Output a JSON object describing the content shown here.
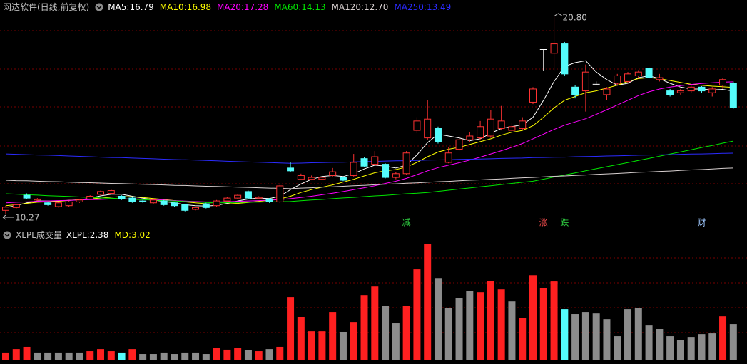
{
  "chart_data": [
    {
      "type": "candlestick",
      "title": "网达软件(日线,前复权)",
      "legend_separator": ": ",
      "up_color": "#ff3232",
      "down_color": "#54fcfc",
      "flat_color": "#ffffff",
      "ylim": [
        9.59,
        20.95
      ],
      "open": [
        10.45,
        10.6,
        11.25,
        11.0,
        10.85,
        10.65,
        10.7,
        10.9,
        11.05,
        11.3,
        11.35,
        11.2,
        11.1,
        10.95,
        10.85,
        10.95,
        10.85,
        10.75,
        10.5,
        10.8,
        10.7,
        10.95,
        11.1,
        11.45,
        11.1,
        11.05,
        10.9,
        12.7,
        12.1,
        12.1,
        12.1,
        12.3,
        12.2,
        12.3,
        13.2,
        12.9,
        12.9,
        12.2,
        12.4,
        14.7,
        14.3,
        14.8,
        13.0,
        13.7,
        14.2,
        14.3,
        14.4,
        14.8,
        14.7,
        14.8,
        16.2,
        19.0,
        18.8,
        19.3,
        17.0,
        16.8,
        17.15,
        16.6,
        17.2,
        17.3,
        17.6,
        18.0,
        17.4,
        16.8,
        16.7,
        16.8,
        17.0,
        16.7,
        17.1,
        17.2
      ],
      "high": [
        10.7,
        10.8,
        11.35,
        11.1,
        10.9,
        10.9,
        10.95,
        11.05,
        11.25,
        11.5,
        11.55,
        11.25,
        11.15,
        11.0,
        11.05,
        11.0,
        10.9,
        10.8,
        10.65,
        10.85,
        11.0,
        11.15,
        11.3,
        11.5,
        11.2,
        11.1,
        11.8,
        13.0,
        12.4,
        12.3,
        12.25,
        12.7,
        12.25,
        13.45,
        13.3,
        13.6,
        12.95,
        12.5,
        13.6,
        15.4,
        16.3,
        14.9,
        13.8,
        14.4,
        14.6,
        15.2,
        15.8,
        16.0,
        15.1,
        15.4,
        17.0,
        19.0,
        20.8,
        19.4,
        17.1,
        18.2,
        17.3,
        17.0,
        17.7,
        17.8,
        17.9,
        18.05,
        17.7,
        16.9,
        16.9,
        17.1,
        17.05,
        17.0,
        17.5,
        17.3
      ],
      "low": [
        10.27,
        10.55,
        11.05,
        10.95,
        10.7,
        10.6,
        10.65,
        10.85,
        11.0,
        11.25,
        11.3,
        11.0,
        10.85,
        10.85,
        10.8,
        10.7,
        10.65,
        10.4,
        10.45,
        10.55,
        10.65,
        10.9,
        11.05,
        11.05,
        11.05,
        10.85,
        10.85,
        12.5,
        12.05,
        12.05,
        12.05,
        12.25,
        12.0,
        12.25,
        12.75,
        12.85,
        12.15,
        12.1,
        12.35,
        14.55,
        14.2,
        14.0,
        12.95,
        13.6,
        14.1,
        14.2,
        14.3,
        14.7,
        14.6,
        14.7,
        16.1,
        17.85,
        17.9,
        17.6,
        16.4,
        15.7,
        17.1,
        16.3,
        17.1,
        17.2,
        17.5,
        17.45,
        17.3,
        16.5,
        16.6,
        16.7,
        16.7,
        16.5,
        16.9,
        15.85
      ],
      "close": [
        10.62,
        10.75,
        11.1,
        11.05,
        10.75,
        10.85,
        10.9,
        11.0,
        11.2,
        11.45,
        11.5,
        11.05,
        10.9,
        10.9,
        11.0,
        10.75,
        10.7,
        10.45,
        10.6,
        10.6,
        10.95,
        11.1,
        11.25,
        11.1,
        11.15,
        10.9,
        11.75,
        12.55,
        12.3,
        12.2,
        12.2,
        12.5,
        12.05,
        13.0,
        12.8,
        13.3,
        12.2,
        12.4,
        13.5,
        15.2,
        15.3,
        14.1,
        13.5,
        14.2,
        14.4,
        14.9,
        15.3,
        15.2,
        14.9,
        15.2,
        16.9,
        19.0,
        19.3,
        17.7,
        16.6,
        17.8,
        17.15,
        16.9,
        17.6,
        17.7,
        17.8,
        17.5,
        17.5,
        16.6,
        16.8,
        17.0,
        16.8,
        16.9,
        17.4,
        15.9
      ],
      "series": [
        {
          "name": "MA5",
          "color": "#ffffff",
          "legend_value": 16.79,
          "values": [
            10.6,
            10.7,
            10.85,
            10.95,
            10.95,
            10.95,
            10.98,
            11.0,
            11.1,
            11.22,
            11.3,
            11.3,
            11.2,
            11.1,
            11.0,
            10.92,
            10.85,
            10.75,
            10.7,
            10.68,
            10.72,
            10.82,
            10.95,
            11.05,
            11.1,
            11.08,
            11.2,
            11.55,
            11.85,
            12.1,
            12.25,
            12.3,
            12.25,
            12.4,
            12.65,
            12.85,
            12.8,
            12.7,
            12.85,
            13.4,
            14.05,
            14.5,
            14.4,
            14.3,
            14.15,
            14.25,
            14.55,
            14.8,
            14.9,
            15.0,
            15.4,
            16.3,
            17.3,
            18.1,
            18.3,
            18.4,
            17.8,
            17.4,
            17.1,
            17.2,
            17.5,
            17.6,
            17.45,
            17.2,
            17.0,
            16.9,
            16.9,
            16.85,
            16.88,
            16.79
          ]
        },
        {
          "name": "MA10",
          "color": "#ffff00",
          "legend_value": 16.98,
          "values": [
            10.7,
            10.75,
            10.82,
            10.88,
            10.9,
            10.93,
            10.98,
            11.02,
            11.06,
            11.1,
            11.15,
            11.18,
            11.17,
            11.13,
            11.08,
            11.03,
            10.97,
            10.9,
            10.85,
            10.8,
            10.78,
            10.79,
            10.82,
            10.87,
            10.93,
            10.98,
            11.05,
            11.2,
            11.4,
            11.55,
            11.68,
            11.8,
            11.95,
            12.1,
            12.28,
            12.45,
            12.55,
            12.62,
            12.75,
            13.0,
            13.3,
            13.55,
            13.7,
            13.8,
            13.95,
            14.1,
            14.25,
            14.45,
            14.6,
            14.7,
            14.95,
            15.4,
            15.9,
            16.3,
            16.5,
            16.7,
            16.8,
            16.95,
            17.1,
            17.3,
            17.45,
            17.5,
            17.45,
            17.35,
            17.25,
            17.15,
            17.1,
            17.05,
            17.02,
            16.98
          ]
        },
        {
          "name": "MA20",
          "color": "#ff00ff",
          "legend_value": 17.28,
          "values": [
            10.85,
            10.88,
            10.9,
            10.93,
            10.95,
            10.97,
            10.98,
            11.0,
            11.02,
            11.03,
            11.05,
            11.06,
            11.06,
            11.05,
            11.03,
            11.0,
            10.97,
            10.94,
            10.92,
            10.9,
            10.9,
            10.91,
            10.93,
            10.95,
            10.97,
            10.99,
            11.02,
            11.07,
            11.13,
            11.2,
            11.28,
            11.36,
            11.45,
            11.55,
            11.65,
            11.76,
            11.88,
            12.0,
            12.15,
            12.35,
            12.55,
            12.72,
            12.85,
            12.98,
            13.12,
            13.28,
            13.45,
            13.62,
            13.8,
            14.0,
            14.25,
            14.5,
            14.75,
            14.98,
            15.15,
            15.32,
            15.55,
            15.8,
            16.05,
            16.3,
            16.55,
            16.75,
            16.9,
            17.0,
            17.08,
            17.14,
            17.19,
            17.23,
            17.26,
            17.28
          ]
        },
        {
          "name": "MA60",
          "color": "#00e600",
          "legend_value": 14.13,
          "values": [
            11.33,
            11.31,
            11.28,
            11.26,
            11.23,
            11.21,
            11.19,
            11.16,
            11.14,
            11.11,
            11.09,
            11.07,
            11.04,
            11.02,
            10.99,
            10.97,
            10.95,
            10.92,
            10.9,
            10.87,
            10.85,
            10.86,
            10.87,
            10.88,
            10.89,
            10.9,
            10.91,
            10.92,
            10.96,
            11.0,
            11.03,
            11.07,
            11.11,
            11.14,
            11.18,
            11.22,
            11.25,
            11.29,
            11.33,
            11.36,
            11.4,
            11.46,
            11.52,
            11.58,
            11.64,
            11.7,
            11.76,
            11.82,
            11.88,
            11.94,
            12.0,
            12.11,
            12.22,
            12.33,
            12.44,
            12.55,
            12.66,
            12.77,
            12.88,
            12.99,
            13.1,
            13.21,
            13.33,
            13.44,
            13.56,
            13.67,
            13.79,
            13.9,
            14.02,
            14.13
          ]
        },
        {
          "name": "MA120",
          "color": "#d8d0d0",
          "legend_value": {
            "value": 12.7,
            "label": "12.70"
          },
          "values": [
            12.05,
            12.03,
            12.02,
            12.0,
            11.98,
            11.97,
            11.95,
            11.93,
            11.92,
            11.9,
            11.88,
            11.87,
            11.85,
            11.83,
            11.82,
            11.8,
            11.78,
            11.77,
            11.75,
            11.73,
            11.72,
            11.7,
            11.68,
            11.67,
            11.65,
            11.63,
            11.62,
            11.6,
            11.63,
            11.65,
            11.68,
            11.7,
            11.73,
            11.76,
            11.78,
            11.81,
            11.84,
            11.86,
            11.89,
            11.91,
            11.94,
            11.97,
            11.99,
            12.02,
            12.05,
            12.07,
            12.1,
            12.12,
            12.15,
            12.18,
            12.2,
            12.23,
            12.26,
            12.28,
            12.31,
            12.33,
            12.36,
            12.39,
            12.41,
            12.44,
            12.47,
            12.49,
            12.52,
            12.54,
            12.57,
            12.6,
            12.62,
            12.65,
            12.68,
            12.7
          ]
        },
        {
          "name": "MA250",
          "color": "#2b2bff",
          "legend_value": 13.49,
          "values": [
            13.45,
            13.43,
            13.41,
            13.39,
            13.38,
            13.36,
            13.34,
            13.32,
            13.3,
            13.28,
            13.26,
            13.25,
            13.23,
            13.21,
            13.19,
            13.17,
            13.15,
            13.14,
            13.12,
            13.1,
            13.08,
            13.06,
            13.04,
            13.02,
            13.01,
            12.99,
            12.97,
            12.95,
            12.96,
            12.98,
            12.99,
            13.0,
            13.01,
            13.03,
            13.04,
            13.05,
            13.07,
            13.08,
            13.09,
            13.1,
            13.12,
            13.13,
            13.14,
            13.16,
            13.17,
            13.18,
            13.19,
            13.21,
            13.22,
            13.23,
            13.25,
            13.26,
            13.27,
            13.28,
            13.3,
            13.31,
            13.32,
            13.34,
            13.35,
            13.36,
            13.38,
            13.39,
            13.4,
            13.41,
            13.43,
            13.44,
            13.45,
            13.46,
            13.48,
            13.49
          ]
        }
      ],
      "annotations": [
        {
          "value": 20.8,
          "label": "20.80",
          "index": 52
        },
        {
          "value": 10.27,
          "label": "10.27",
          "index": 0
        }
      ],
      "markers": [
        {
          "label": "减",
          "index": 38,
          "color": "#2ecc40"
        },
        {
          "label": "涨",
          "index": 51,
          "color": "#ff5050"
        },
        {
          "label": "跌",
          "index": 53,
          "color": "#2ecc40"
        },
        {
          "label": "财",
          "index": 66,
          "color": "#9fc8ff"
        }
      ]
    },
    {
      "type": "bar",
      "title": "XLPL成交量",
      "legend_separator": ": ",
      "ylim": [
        0,
        8.2
      ],
      "indicators": [
        {
          "name": "XLPL",
          "value": 2.38,
          "color": "#ffffff"
        },
        {
          "name": "MD",
          "value": 3.02,
          "color": "#ffff00"
        }
      ],
      "values": [
        0.48,
        0.71,
        0.86,
        0.48,
        0.48,
        0.48,
        0.48,
        0.48,
        0.57,
        0.71,
        0.57,
        0.48,
        0.71,
        0.38,
        0.38,
        0.48,
        0.38,
        0.48,
        0.48,
        0.38,
        0.81,
        0.67,
        0.81,
        0.62,
        0.57,
        0.71,
        0.86,
        4.19,
        2.86,
        1.9,
        1.9,
        3.19,
        1.86,
        2.52,
        4.33,
        4.9,
        3.62,
        2.43,
        3.62,
        6.05,
        7.76,
        5.47,
        3.47,
        4.14,
        4.62,
        4.52,
        5.28,
        4.71,
        3.9,
        2.81,
        5.66,
        4.81,
        5.24,
        3.38,
        3.05,
        3.19,
        3.09,
        2.71,
        1.57,
        3.38,
        3.47,
        2.33,
        2.05,
        1.57,
        1.29,
        1.52,
        1.71,
        1.76,
        2.9,
        2.38
      ],
      "colors": [
        "#ff2020",
        "#ff2020",
        "#ff2020",
        "#8c8c8c",
        "#8c8c8c",
        "#8c8c8c",
        "#8c8c8c",
        "#8c8c8c",
        "#ff2020",
        "#ff2020",
        "#ff2020",
        "#54fcfc",
        "#ff2020",
        "#8c8c8c",
        "#8c8c8c",
        "#8c8c8c",
        "#8c8c8c",
        "#8c8c8c",
        "#8c8c8c",
        "#8c8c8c",
        "#ff2020",
        "#ff2020",
        "#ff2020",
        "#8c8c8c",
        "#ff2020",
        "#8c8c8c",
        "#ff2020",
        "#ff2020",
        "#ff2020",
        "#ff2020",
        "#ff2020",
        "#ff2020",
        "#8c8c8c",
        "#ff2020",
        "#ff2020",
        "#ff2020",
        "#8c8c8c",
        "#8c8c8c",
        "#ff2020",
        "#ff2020",
        "#ff2020",
        "#8c8c8c",
        "#8c8c8c",
        "#8c8c8c",
        "#8c8c8c",
        "#ff2020",
        "#ff2020",
        "#ff2020",
        "#8c8c8c",
        "#ff2020",
        "#ff2020",
        "#ff2020",
        "#ff2020",
        "#54fcfc",
        "#8c8c8c",
        "#8c8c8c",
        "#8c8c8c",
        "#8c8c8c",
        "#8c8c8c",
        "#8c8c8c",
        "#8c8c8c",
        "#8c8c8c",
        "#8c8c8c",
        "#8c8c8c",
        "#8c8c8c",
        "#8c8c8c",
        "#8c8c8c",
        "#8c8c8c",
        "#ff2020",
        "#8c8c8c"
      ]
    }
  ]
}
